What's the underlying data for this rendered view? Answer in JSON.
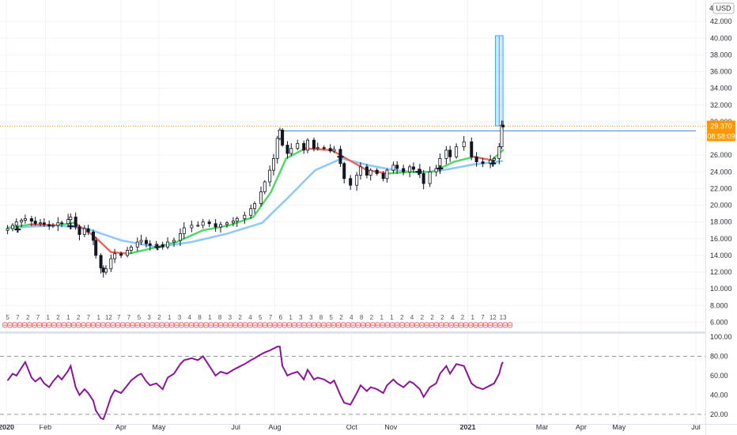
{
  "chart_data": [
    {
      "type": "candlestick",
      "currency": "USD",
      "scale_count": "4",
      "ylim": [
        5,
        44
      ],
      "y_ticks": [
        "6.000",
        "8.000",
        "10.000",
        "12.000",
        "14.000",
        "16.000",
        "18.000",
        "20.000",
        "22.000",
        "24.000",
        "26.000",
        "28.000",
        "30.000",
        "32.000",
        "34.000",
        "36.000",
        "38.000",
        "40.000",
        "42.000"
      ],
      "x_ticks": [
        "2020",
        "Feb",
        "Apr",
        "May",
        "Jul",
        "Aug",
        "Oct",
        "Nov",
        "2021",
        "Mar",
        "Apr",
        "May",
        "Jul"
      ],
      "last_price": "29.370",
      "countdown": "08:58:09",
      "resistance_level": 28.9,
      "measure_box": {
        "from": 29.5,
        "to": 40.3
      },
      "price_path": [
        [
          "2020-01-02",
          17.2
        ],
        [
          "2020-01-06",
          17.6
        ],
        [
          "2020-01-09",
          18.0
        ],
        [
          "2020-01-13",
          18.2
        ],
        [
          "2020-01-16",
          18.4
        ],
        [
          "2020-01-21",
          18.1
        ],
        [
          "2020-01-24",
          17.8
        ],
        [
          "2020-01-28",
          17.9
        ],
        [
          "2020-01-31",
          17.7
        ],
        [
          "2020-02-04",
          17.5
        ],
        [
          "2020-02-07",
          17.6
        ],
        [
          "2020-02-11",
          17.9
        ],
        [
          "2020-02-14",
          17.8
        ],
        [
          "2020-02-19",
          18.3
        ],
        [
          "2020-02-21",
          18.6
        ],
        [
          "2020-02-25",
          17.4
        ],
        [
          "2020-02-28",
          16.5
        ],
        [
          "2020-03-03",
          17.2
        ],
        [
          "2020-03-06",
          16.8
        ],
        [
          "2020-03-10",
          15.8
        ],
        [
          "2020-03-12",
          14.0
        ],
        [
          "2020-03-16",
          12.5
        ],
        [
          "2020-03-18",
          12.0
        ],
        [
          "2020-03-20",
          12.4
        ],
        [
          "2020-03-24",
          13.6
        ],
        [
          "2020-03-27",
          14.2
        ],
        [
          "2020-04-01",
          14.0
        ],
        [
          "2020-04-06",
          14.6
        ],
        [
          "2020-04-09",
          15.0
        ],
        [
          "2020-04-14",
          15.6
        ],
        [
          "2020-04-17",
          15.8
        ],
        [
          "2020-04-21",
          15.4
        ],
        [
          "2020-04-24",
          15.2
        ],
        [
          "2020-04-29",
          15.3
        ],
        [
          "2020-05-04",
          15.0
        ],
        [
          "2020-05-08",
          15.6
        ],
        [
          "2020-05-13",
          15.8
        ],
        [
          "2020-05-18",
          16.6
        ],
        [
          "2020-05-21",
          17.3
        ],
        [
          "2020-05-27",
          17.6
        ],
        [
          "2020-06-01",
          17.6
        ],
        [
          "2020-06-05",
          18.0
        ],
        [
          "2020-06-10",
          17.8
        ],
        [
          "2020-06-15",
          17.4
        ],
        [
          "2020-06-19",
          17.7
        ],
        [
          "2020-06-24",
          17.9
        ],
        [
          "2020-06-29",
          18.1
        ],
        [
          "2020-07-02",
          18.4
        ],
        [
          "2020-07-08",
          18.8
        ],
        [
          "2020-07-13",
          19.6
        ],
        [
          "2020-07-16",
          20.2
        ],
        [
          "2020-07-21",
          21.6
        ],
        [
          "2020-07-24",
          22.8
        ],
        [
          "2020-07-28",
          24.2
        ],
        [
          "2020-07-31",
          25.6
        ],
        [
          "2020-08-03",
          28.0
        ],
        [
          "2020-08-05",
          29.0
        ],
        [
          "2020-08-07",
          27.2
        ],
        [
          "2020-08-11",
          26.2
        ],
        [
          "2020-08-14",
          26.8
        ],
        [
          "2020-08-19",
          27.4
        ],
        [
          "2020-08-24",
          26.6
        ],
        [
          "2020-08-27",
          27.8
        ],
        [
          "2020-09-01",
          26.8
        ],
        [
          "2020-09-04",
          26.9
        ],
        [
          "2020-09-09",
          26.8
        ],
        [
          "2020-09-14",
          26.5
        ],
        [
          "2020-09-17",
          26.7
        ],
        [
          "2020-09-22",
          25.0
        ],
        [
          "2020-09-25",
          23.2
        ],
        [
          "2020-09-30",
          22.4
        ],
        [
          "2020-10-05",
          23.6
        ],
        [
          "2020-10-08",
          24.6
        ],
        [
          "2020-10-13",
          23.6
        ],
        [
          "2020-10-16",
          24.2
        ],
        [
          "2020-10-21",
          23.8
        ],
        [
          "2020-10-26",
          23.2
        ],
        [
          "2020-10-29",
          24.2
        ],
        [
          "2020-11-03",
          24.8
        ],
        [
          "2020-11-06",
          24.4
        ],
        [
          "2020-11-11",
          24.0
        ],
        [
          "2020-11-16",
          24.6
        ],
        [
          "2020-11-19",
          24.3
        ],
        [
          "2020-11-24",
          23.8
        ],
        [
          "2020-11-27",
          22.6
        ],
        [
          "2020-12-02",
          24.0
        ],
        [
          "2020-12-07",
          24.4
        ],
        [
          "2020-12-10",
          25.6
        ],
        [
          "2020-12-15",
          26.6
        ],
        [
          "2020-12-18",
          25.8
        ],
        [
          "2020-12-23",
          27.0
        ],
        [
          "2020-12-29",
          27.6
        ],
        [
          "2021-01-04",
          25.8
        ],
        [
          "2021-01-08",
          25.2
        ],
        [
          "2021-01-13",
          25.0
        ],
        [
          "2021-01-19",
          25.4
        ],
        [
          "2021-01-22",
          25.6
        ],
        [
          "2021-01-26",
          27.0
        ],
        [
          "2021-01-28",
          29.6
        ],
        [
          "2021-01-29",
          29.37
        ]
      ],
      "ma_fast": [
        [
          "2020-01-02",
          17.3
        ],
        [
          "2020-01-20",
          17.7
        ],
        [
          "2020-02-10",
          17.6
        ],
        [
          "2020-02-24",
          17.9
        ],
        [
          "2020-03-10",
          16.4
        ],
        [
          "2020-03-24",
          14.4
        ],
        [
          "2020-04-07",
          14.2
        ],
        [
          "2020-04-24",
          14.8
        ],
        [
          "2020-05-15",
          15.6
        ],
        [
          "2020-06-05",
          17.0
        ],
        [
          "2020-06-26",
          17.6
        ],
        [
          "2020-07-15",
          18.6
        ],
        [
          "2020-07-29",
          21.6
        ],
        [
          "2020-08-10",
          25.6
        ],
        [
          "2020-08-25",
          26.8
        ],
        [
          "2020-09-15",
          26.6
        ],
        [
          "2020-09-29",
          25.4
        ],
        [
          "2020-10-13",
          24.2
        ],
        [
          "2020-10-30",
          23.8
        ],
        [
          "2020-11-17",
          24.0
        ],
        [
          "2020-12-04",
          24.0
        ],
        [
          "2020-12-21",
          25.2
        ],
        [
          "2021-01-06",
          25.8
        ],
        [
          "2021-01-20",
          25.4
        ],
        [
          "2021-01-29",
          26.6
        ]
      ],
      "ma_slow": [
        [
          "2020-01-02",
          17.3
        ],
        [
          "2020-02-10",
          17.6
        ],
        [
          "2020-03-05",
          17.2
        ],
        [
          "2020-04-01",
          15.8
        ],
        [
          "2020-04-29",
          15.0
        ],
        [
          "2020-05-27",
          15.6
        ],
        [
          "2020-06-24",
          16.6
        ],
        [
          "2020-07-22",
          17.9
        ],
        [
          "2020-08-12",
          21.0
        ],
        [
          "2020-09-02",
          24.2
        ],
        [
          "2020-09-23",
          25.6
        ],
        [
          "2020-10-14",
          24.8
        ],
        [
          "2020-11-04",
          24.2
        ],
        [
          "2020-11-25",
          23.9
        ],
        [
          "2020-12-16",
          24.3
        ],
        [
          "2021-01-06",
          24.9
        ],
        [
          "2021-01-29",
          25.3
        ]
      ],
      "cross_markers": [
        [
          "2020-01-10",
          17.1
        ],
        [
          "2020-02-21",
          17.5
        ],
        [
          "2020-04-30",
          15.0
        ],
        [
          "2020-09-22",
          25.8
        ],
        [
          "2020-11-23",
          24.0
        ],
        [
          "2020-12-10",
          24.4
        ],
        [
          "2021-01-21",
          25.0
        ]
      ],
      "event_label_codes": [
        "5",
        "7",
        "2",
        "7",
        "1",
        "2",
        "1",
        "2",
        "7",
        "1",
        "12",
        "7",
        "7",
        "5",
        "3",
        "2",
        "1",
        "3",
        "4",
        "8",
        "1",
        "8",
        "3",
        "2",
        "4",
        "5",
        "7",
        "6",
        "1",
        "3",
        "3",
        "8",
        "5",
        "2",
        "4",
        "8",
        "2",
        "1",
        "1",
        "2",
        "4",
        "2",
        "2",
        "2",
        "4",
        "2",
        "1",
        "7",
        "12",
        "13"
      ]
    },
    {
      "type": "line",
      "ylim": [
        15,
        100
      ],
      "y_ticks": [
        "20.00",
        "40.00",
        "60.00",
        "80.00",
        "100.00"
      ],
      "bands": [
        20,
        80
      ],
      "series": [
        {
          "color": "#8b159a",
          "points": [
            [
              "2020-01-02",
              55
            ],
            [
              "2020-01-06",
              62
            ],
            [
              "2020-01-09",
              60
            ],
            [
              "2020-01-13",
              68
            ],
            [
              "2020-01-16",
              74
            ],
            [
              "2020-01-21",
              58
            ],
            [
              "2020-01-24",
              54
            ],
            [
              "2020-01-28",
              58
            ],
            [
              "2020-01-31",
              52
            ],
            [
              "2020-02-04",
              48
            ],
            [
              "2020-02-07",
              54
            ],
            [
              "2020-02-11",
              60
            ],
            [
              "2020-02-14",
              56
            ],
            [
              "2020-02-19",
              65
            ],
            [
              "2020-02-21",
              70
            ],
            [
              "2020-02-25",
              48
            ],
            [
              "2020-02-28",
              40
            ],
            [
              "2020-03-03",
              46
            ],
            [
              "2020-03-06",
              42
            ],
            [
              "2020-03-10",
              34
            ],
            [
              "2020-03-12",
              24
            ],
            [
              "2020-03-16",
              16
            ],
            [
              "2020-03-18",
              15
            ],
            [
              "2020-03-20",
              22
            ],
            [
              "2020-03-24",
              38
            ],
            [
              "2020-03-27",
              45
            ],
            [
              "2020-04-01",
              42
            ],
            [
              "2020-04-06",
              50
            ],
            [
              "2020-04-09",
              55
            ],
            [
              "2020-04-14",
              60
            ],
            [
              "2020-04-17",
              62
            ],
            [
              "2020-04-21",
              54
            ],
            [
              "2020-04-24",
              50
            ],
            [
              "2020-04-29",
              52
            ],
            [
              "2020-05-04",
              46
            ],
            [
              "2020-05-08",
              58
            ],
            [
              "2020-05-13",
              62
            ],
            [
              "2020-05-18",
              72
            ],
            [
              "2020-05-21",
              76
            ],
            [
              "2020-05-27",
              78
            ],
            [
              "2020-06-01",
              76
            ],
            [
              "2020-06-05",
              80
            ],
            [
              "2020-06-10",
              70
            ],
            [
              "2020-06-15",
              60
            ],
            [
              "2020-06-19",
              64
            ],
            [
              "2020-06-24",
              62
            ],
            [
              "2020-06-29",
              66
            ],
            [
              "2020-07-02",
              68
            ],
            [
              "2020-07-08",
              72
            ],
            [
              "2020-07-13",
              76
            ],
            [
              "2020-07-16",
              78
            ],
            [
              "2020-07-21",
              82
            ],
            [
              "2020-07-24",
              84
            ],
            [
              "2020-07-28",
              86
            ],
            [
              "2020-07-31",
              88
            ],
            [
              "2020-08-03",
              90
            ],
            [
              "2020-08-05",
              90
            ],
            [
              "2020-08-07",
              70
            ],
            [
              "2020-08-11",
              60
            ],
            [
              "2020-08-14",
              62
            ],
            [
              "2020-08-19",
              64
            ],
            [
              "2020-08-24",
              56
            ],
            [
              "2020-08-27",
              66
            ],
            [
              "2020-09-01",
              56
            ],
            [
              "2020-09-04",
              58
            ],
            [
              "2020-09-09",
              56
            ],
            [
              "2020-09-14",
              52
            ],
            [
              "2020-09-17",
              55
            ],
            [
              "2020-09-22",
              40
            ],
            [
              "2020-09-25",
              32
            ],
            [
              "2020-09-30",
              30
            ],
            [
              "2020-10-05",
              42
            ],
            [
              "2020-10-08",
              50
            ],
            [
              "2020-10-13",
              44
            ],
            [
              "2020-10-16",
              48
            ],
            [
              "2020-10-21",
              46
            ],
            [
              "2020-10-26",
              42
            ],
            [
              "2020-10-29",
              50
            ],
            [
              "2020-11-03",
              56
            ],
            [
              "2020-11-06",
              52
            ],
            [
              "2020-11-11",
              48
            ],
            [
              "2020-11-16",
              54
            ],
            [
              "2020-11-19",
              52
            ],
            [
              "2020-11-24",
              46
            ],
            [
              "2020-11-27",
              38
            ],
            [
              "2020-12-02",
              48
            ],
            [
              "2020-12-07",
              52
            ],
            [
              "2020-12-10",
              62
            ],
            [
              "2020-12-15",
              70
            ],
            [
              "2020-12-18",
              62
            ],
            [
              "2020-12-23",
              72
            ],
            [
              "2020-12-29",
              70
            ],
            [
              "2021-01-04",
              52
            ],
            [
              "2021-01-08",
              48
            ],
            [
              "2021-01-13",
              46
            ],
            [
              "2021-01-19",
              50
            ],
            [
              "2021-01-22",
              52
            ],
            [
              "2021-01-26",
              62
            ],
            [
              "2021-01-28",
              72
            ],
            [
              "2021-01-29",
              74
            ]
          ]
        }
      ]
    }
  ]
}
